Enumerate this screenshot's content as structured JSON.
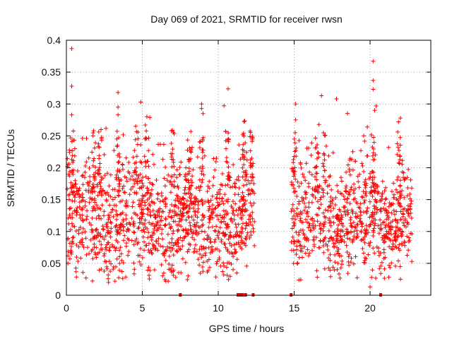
{
  "chart_data": {
    "type": "scatter",
    "title": "Day 069 of 2021, SRMTID for receiver rwsn",
    "xlabel": "GPS time / hours",
    "ylabel": "SRMTID / TECUs",
    "xlim": [
      0,
      24
    ],
    "ylim": [
      0,
      0.4
    ],
    "xticks": [
      0,
      5,
      10,
      15,
      20
    ],
    "yticks": [
      0,
      0.05,
      0.1,
      0.15,
      0.2,
      0.25,
      0.3,
      0.35,
      0.4
    ],
    "ytick_labels": [
      "0",
      "0.05",
      "0.1",
      "0.15",
      "0.2",
      "0.25",
      "0.3",
      "0.35",
      "0.4"
    ],
    "xtick_labels": [
      "0",
      "5",
      "10",
      "15",
      "20"
    ],
    "grid": true,
    "marker": "+",
    "series_color": "#ff0000",
    "data_gap_hours": [
      12.4,
      14.8
    ],
    "outliers": [
      {
        "x": 0.35,
        "y": 0.387
      },
      {
        "x": 0.35,
        "y": 0.328
      },
      {
        "x": 0.35,
        "y": 0.283
      },
      {
        "x": 3.4,
        "y": 0.318
      },
      {
        "x": 3.4,
        "y": 0.295
      },
      {
        "x": 3.4,
        "y": 0.283
      },
      {
        "x": 4.9,
        "y": 0.303
      },
      {
        "x": 5.3,
        "y": 0.28
      },
      {
        "x": 5.2,
        "y": 0.267
      },
      {
        "x": 8.9,
        "y": 0.3
      },
      {
        "x": 8.9,
        "y": 0.293
      },
      {
        "x": 9.0,
        "y": 0.285
      },
      {
        "x": 15.1,
        "y": 0.3
      },
      {
        "x": 15.1,
        "y": 0.275
      },
      {
        "x": 16.8,
        "y": 0.313
      },
      {
        "x": 20.2,
        "y": 0.367
      },
      {
        "x": 20.2,
        "y": 0.337
      },
      {
        "x": 20.2,
        "y": 0.323
      },
      {
        "x": 20.4,
        "y": 0.297
      },
      {
        "x": 20.3,
        "y": 0.29
      },
      {
        "x": 22.0,
        "y": 0.278
      },
      {
        "x": 20.0,
        "y": 0.013
      },
      {
        "x": 20.1,
        "y": 0.028
      },
      {
        "x": 3.2,
        "y": 0.022
      },
      {
        "x": 6.7,
        "y": 0.022
      },
      {
        "x": 22.0,
        "y": 0.025
      }
    ],
    "zero_markers": [
      7.5,
      11.3,
      11.45,
      11.6,
      11.8,
      12.3,
      14.8,
      20.7
    ]
  }
}
